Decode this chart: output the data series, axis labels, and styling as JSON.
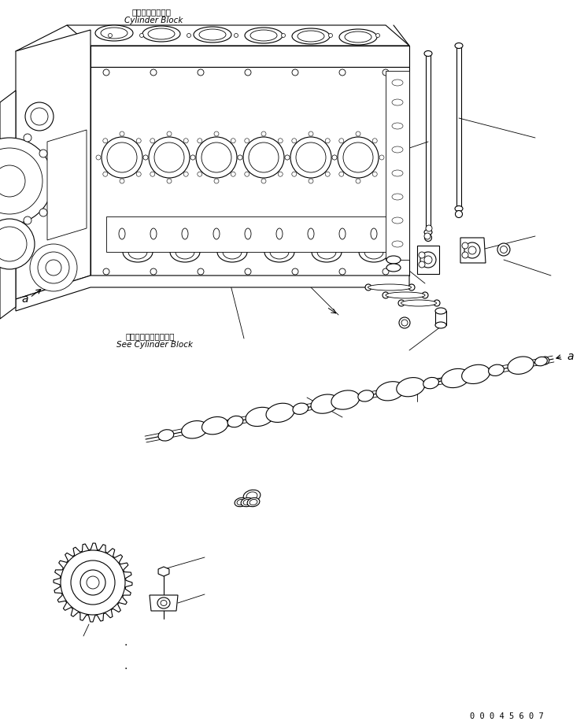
{
  "background_color": "#ffffff",
  "line_color": "#000000",
  "text_color": "#000000",
  "label_top_japanese": "シリンダブロック",
  "label_top_english": "Cylinder Block",
  "label_mid_japanese": "シリンダブロック参照",
  "label_mid_english": "See Cylinder Block",
  "label_a1": "a",
  "label_a2": "a",
  "part_number": "0 0 0 4 5 6 0 7",
  "fig_width": 7.42,
  "fig_height": 9.21,
  "dpi": 100
}
